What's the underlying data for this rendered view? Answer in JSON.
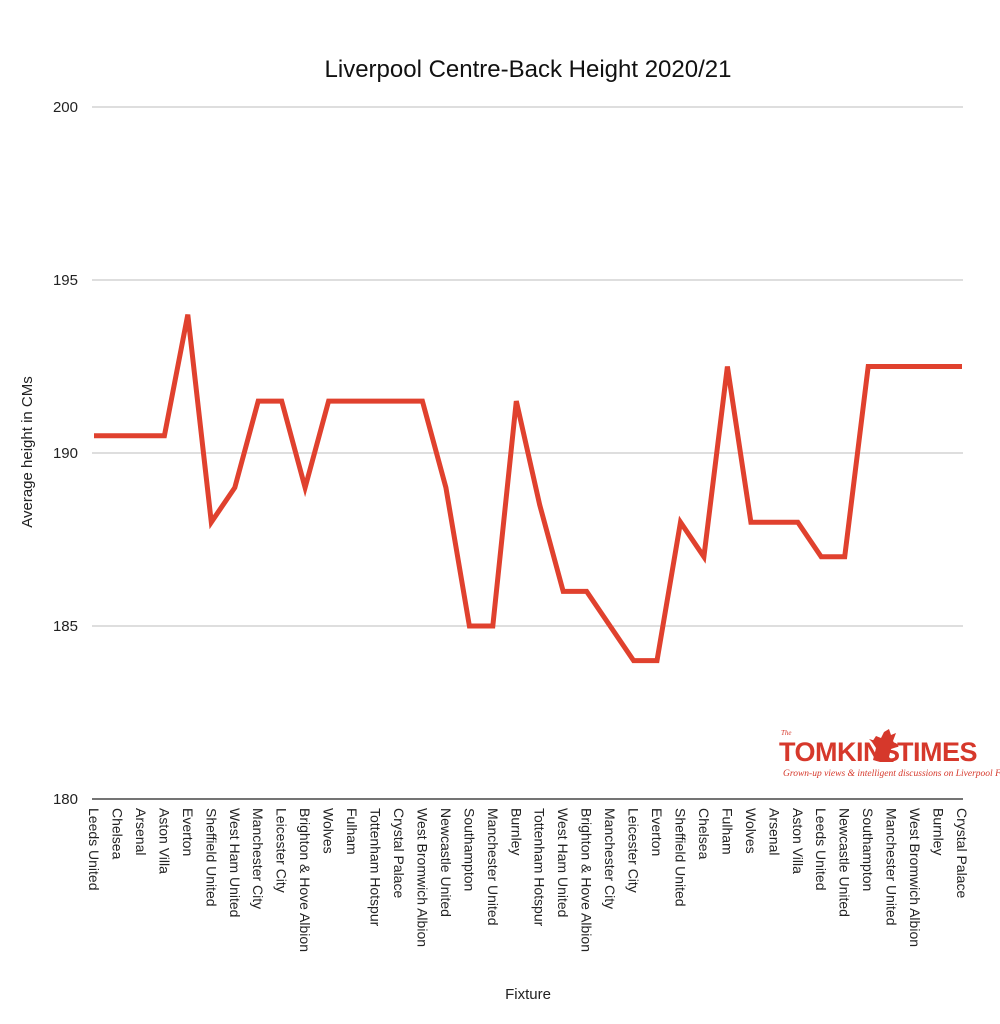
{
  "chart_data": {
    "type": "line",
    "title": "Liverpool Centre-Back Height 2020/21",
    "xlabel": "Fixture",
    "ylabel": "Average height in CMs",
    "ylim": [
      180,
      200
    ],
    "yticks": [
      180,
      185,
      190,
      195,
      200
    ],
    "grid": true,
    "series_color": "#e0412e",
    "categories": [
      "Leeds United",
      "Chelsea",
      "Arsenal",
      "Aston Villa",
      "Everton",
      "Sheffield United",
      "West Ham United",
      "Manchester City",
      "Leicester City",
      "Brighton & Hove Albion",
      "Wolves",
      "Fulham",
      "Tottenham Hotspur",
      "Crystal Palace",
      "West Bromwich Albion",
      "Newcastle United",
      "Southampton",
      "Manchester United",
      "Burnley",
      "Tottenham Hotspur",
      "West Ham United",
      "Brighton & Hove Albion",
      "Manchester City",
      "Leicester City",
      "Everton",
      "Sheffield United",
      "Chelsea",
      "Fulham",
      "Wolves",
      "Arsenal",
      "Aston Villa",
      "Leeds United",
      "Newcastle United",
      "Southampton",
      "Manchester United",
      "West Bromwich Albion",
      "Burnley",
      "Crystal Palace"
    ],
    "series": [
      {
        "values": [
          190.5,
          190.5,
          190.5,
          190.5,
          194,
          188,
          189,
          191.5,
          191.5,
          189,
          191.5,
          191.5,
          191.5,
          191.5,
          191.5,
          189,
          185,
          185,
          191.5,
          188.5,
          186,
          186,
          185,
          184,
          184,
          188,
          187,
          192.5,
          188,
          188,
          188,
          187,
          187,
          192.5,
          192.5,
          192.5,
          192.5,
          192.5
        ]
      }
    ]
  },
  "logo": {
    "small": "The",
    "name_left": "TOMKINS",
    "name_right": "TIMES",
    "tagline": "Grown-up views & intelligent discussions on Liverpool FC",
    "color": "#d6382b"
  }
}
